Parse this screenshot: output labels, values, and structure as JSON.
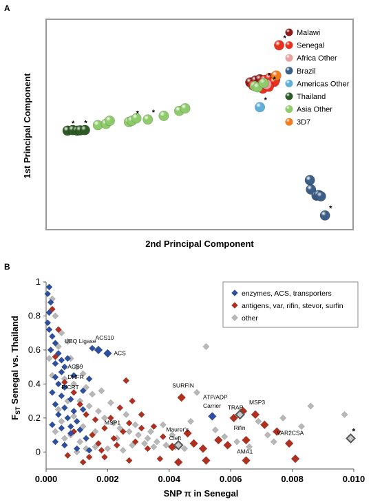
{
  "panels": {
    "a_label": "A",
    "b_label": "B"
  },
  "chart_data": [
    {
      "type": "scatter",
      "panel": "A",
      "xlabel": "2nd Principal Component",
      "ylabel": "1st Principal Component",
      "legend_position": "top-right",
      "series": [
        {
          "name": "Malawi",
          "color": "#8b1a1a",
          "points": [
            [
              50.2,
              7.8
            ],
            [
              51.6,
              8.1
            ],
            [
              52.8,
              8.3
            ]
          ]
        },
        {
          "name": "Senegal",
          "color": "#e8311f",
          "points": [
            [
              58,
              13.8
            ],
            [
              51,
              7.3
            ],
            [
              53.4,
              7.6
            ],
            [
              54.1,
              8.2
            ],
            [
              55.4,
              8.5
            ],
            [
              56.9,
              8.2
            ],
            [
              56.7,
              7.9
            ],
            [
              53.6,
              6.8
            ],
            [
              55.2,
              7.1
            ]
          ]
        },
        {
          "name": "Africa Other",
          "color": "#e8a0a0",
          "points": [
            [
              54.6,
              7.5
            ]
          ]
        },
        {
          "name": "Brazil",
          "color": "#3b5e86",
          "points": [
            [
              66.3,
              -8.0
            ],
            [
              66.6,
              -9.5
            ],
            [
              68.1,
              -10.5
            ],
            [
              68.7,
              -10.4
            ],
            [
              69.3,
              -10.6
            ],
            [
              70.4,
              -13.7
            ]
          ]
        },
        {
          "name": "Americas Other",
          "color": "#5fb0d8",
          "points": [
            [
              52.8,
              3.8
            ]
          ]
        },
        {
          "name": "Thailand",
          "color": "#2e5b25",
          "points": [
            [
              0.8,
              0
            ],
            [
              2.2,
              0.1
            ],
            [
              3.4,
              0
            ],
            [
              4.2,
              0.05
            ],
            [
              5.5,
              0.1
            ]
          ]
        },
        {
          "name": "Asia Other",
          "color": "#8ecb6b",
          "points": [
            [
              9,
              0.9
            ],
            [
              11.2,
              1.1
            ],
            [
              12.2,
              1.6
            ],
            [
              17.4,
              1.4
            ],
            [
              18.2,
              1.6
            ],
            [
              19.4,
              2.0
            ],
            [
              22.5,
              1.8
            ],
            [
              26.8,
              2.4
            ],
            [
              31,
              3.2
            ],
            [
              32.6,
              3.6
            ],
            [
              51.4,
              7.2
            ],
            [
              52.2,
              7.0
            ],
            [
              53.8,
              7.7
            ]
          ]
        },
        {
          "name": "3D7",
          "color": "#f07c1f",
          "points": [
            [
              57.2,
              8.9
            ]
          ]
        }
      ],
      "asterisk_points": [
        [
          0.8,
          0
        ],
        [
          4.2,
          0.05
        ],
        [
          18.2,
          1.6
        ],
        [
          22.5,
          1.8
        ],
        [
          58,
          13.8
        ],
        [
          53.8,
          7.7
        ],
        [
          55.2,
          7.1
        ],
        [
          52.8,
          3.8
        ],
        [
          70.4,
          -13.7
        ]
      ],
      "xlim": [
        -5,
        78
      ],
      "ylim": [
        -16,
        18
      ]
    },
    {
      "type": "scatter",
      "panel": "B",
      "xlabel": "SNP π in Senegal",
      "ylabel": "FST Senegal vs. Thailand",
      "ylabel_main": "F",
      "ylabel_sub": "ST",
      "ylabel_rest": " Senegal vs. Thailand",
      "xlim": [
        0,
        0.01
      ],
      "ylim": [
        -0.1,
        1.0
      ],
      "xticks": [
        "0.000",
        "0.002",
        "0.004",
        "0.006",
        "0.008",
        "0.010"
      ],
      "xtick_values": [
        0,
        0.002,
        0.004,
        0.006,
        0.008,
        0.01
      ],
      "yticks": [
        "0",
        "0.2",
        "0.4",
        "0.6",
        "0.8",
        "1"
      ],
      "ytick_values": [
        0,
        0.2,
        0.4,
        0.6,
        0.8,
        1.0
      ],
      "legend_position": "top-right",
      "series": [
        {
          "name": "enzymes, ACS, transporters",
          "color": "#2d4fa0",
          "points": [
            [
              5e-05,
              0.93
            ],
            [
              0.0001,
              0.97
            ],
            [
              0.00015,
              0.88
            ],
            [
              0.0001,
              0.82
            ],
            [
              5e-05,
              0.76
            ],
            [
              0.0001,
              0.72
            ],
            [
              0.0002,
              0.68
            ],
            [
              0.0003,
              0.64
            ],
            [
              0.00015,
              0.6
            ],
            [
              0.0004,
              0.58
            ],
            [
              0.0005,
              0.54
            ],
            [
              0.0003,
              0.52
            ],
            [
              0.0006,
              0.5
            ],
            [
              0.0005,
              0.47
            ],
            [
              0.0003,
              0.44
            ],
            [
              0.0004,
              0.4
            ],
            [
              0.0006,
              0.38
            ],
            [
              0.0002,
              0.35
            ],
            [
              0.0005,
              0.33
            ],
            [
              0.0008,
              0.31
            ],
            [
              0.0003,
              0.28
            ],
            [
              0.0006,
              0.26
            ],
            [
              0.0009,
              0.24
            ],
            [
              0.0004,
              0.22
            ],
            [
              0.0007,
              0.2
            ],
            [
              0.001,
              0.18
            ],
            [
              0.0002,
              0.16
            ],
            [
              0.0005,
              0.14
            ],
            [
              0.0011,
              0.13
            ],
            [
              0.0008,
              0.11
            ],
            [
              0.0013,
              0.08
            ],
            [
              0.0003,
              0.06
            ],
            [
              0.0006,
              0.04
            ],
            [
              0.001,
              0.02
            ],
            [
              0.0014,
              0.01
            ],
            [
              0.0012,
              0.36
            ],
            [
              0.0014,
              0.43
            ],
            [
              0.0009,
              0.45
            ],
            [
              0.0015,
              0.61
            ],
            [
              0.0017,
              0.6
            ],
            [
              0.002,
              0.58
            ],
            [
              0.0007,
              0.55
            ],
            [
              0.0012,
              0.25
            ],
            [
              0.0008,
              0.15
            ],
            [
              0.0054,
              0.21
            ]
          ]
        },
        {
          "name": "antigens, var, rifin, stevor, surfin",
          "color": "#b03020",
          "points": [
            [
              0.0002,
              0.84
            ],
            [
              0.0003,
              0.56
            ],
            [
              0.0004,
              0.72
            ],
            [
              0.0006,
              0.41
            ],
            [
              0.0009,
              0.35
            ],
            [
              0.0011,
              0.28
            ],
            [
              0.0013,
              0.22
            ],
            [
              0.0016,
              0.19
            ],
            [
              0.0019,
              0.14
            ],
            [
              0.0021,
              0.2
            ],
            [
              0.0024,
              0.26
            ],
            [
              0.0026,
              0.42
            ],
            [
              0.0028,
              0.3
            ],
            [
              0.0031,
              0.22
            ],
            [
              0.0017,
              0.05
            ],
            [
              0.0019,
              -0.03
            ],
            [
              0.0022,
              0.08
            ],
            [
              0.0025,
              0.12
            ],
            [
              0.0029,
              0.06
            ],
            [
              0.0033,
              0.02
            ],
            [
              0.0035,
              0.15
            ],
            [
              0.0038,
              0.09
            ],
            [
              0.0041,
              0.03
            ],
            [
              0.0044,
              0.32
            ],
            [
              0.0046,
              0.11
            ],
            [
              0.0048,
              0.05
            ],
            [
              0.0051,
              0.02
            ],
            [
              0.0056,
              0.07
            ],
            [
              0.0059,
              0.04
            ],
            [
              0.0061,
              0.2
            ],
            [
              0.0064,
              0.24
            ],
            [
              0.0065,
              0.07
            ],
            [
              0.0068,
              0.22
            ],
            [
              0.0071,
              0.16
            ],
            [
              0.0075,
              0.12
            ],
            [
              0.0079,
              0.05
            ],
            [
              0.0081,
              -0.04
            ],
            [
              0.0065,
              -0.05
            ],
            [
              0.0012,
              -0.06
            ],
            [
              0.0015,
              0.1
            ],
            [
              0.0009,
              0.12
            ],
            [
              0.0007,
              -0.02
            ],
            [
              0.0027,
              -0.05
            ],
            [
              0.0037,
              -0.04
            ],
            [
              0.0043,
              -0.06
            ],
            [
              0.0052,
              -0.05
            ],
            [
              0.0023,
              0.04
            ],
            [
              0.0014,
              -0.03
            ],
            [
              0.0031,
              0.14
            ],
            [
              0.0027,
              0.17
            ],
            [
              0.0018,
              0.01
            ]
          ]
        },
        {
          "name": "other",
          "color": "#b8b8b8",
          "points": [
            [
              0.0002,
              0.9
            ],
            [
              0.0003,
              0.8
            ],
            [
              0.0005,
              0.7
            ],
            [
              0.0007,
              0.65
            ],
            [
              0.0004,
              0.62
            ],
            [
              0.0008,
              0.55
            ],
            [
              0.001,
              0.5
            ],
            [
              0.0012,
              0.46
            ],
            [
              0.0006,
              0.43
            ],
            [
              0.0009,
              0.4
            ],
            [
              0.0013,
              0.38
            ],
            [
              0.0015,
              0.34
            ],
            [
              0.0011,
              0.3
            ],
            [
              0.0014,
              0.27
            ],
            [
              0.0017,
              0.24
            ],
            [
              0.0019,
              0.2
            ],
            [
              0.0022,
              0.17
            ],
            [
              0.0024,
              0.14
            ],
            [
              0.0027,
              0.12
            ],
            [
              0.003,
              0.1
            ],
            [
              0.0033,
              0.08
            ],
            [
              0.0036,
              0.06
            ],
            [
              0.0039,
              0.04
            ],
            [
              0.0042,
              0.03
            ],
            [
              0.0045,
              0.02
            ],
            [
              0.0047,
              0.18
            ],
            [
              0.0049,
              0.35
            ],
            [
              0.0052,
              0.62
            ],
            [
              0.0055,
              0.13
            ],
            [
              0.0058,
              0.09
            ],
            [
              0.0062,
              0.06
            ],
            [
              0.0066,
              0.03
            ],
            [
              0.0069,
              0.18
            ],
            [
              0.0072,
              0.1
            ],
            [
              0.0074,
              0.06
            ],
            [
              0.0077,
              0.2
            ],
            [
              0.0083,
              0.15
            ],
            [
              0.0086,
              0.27
            ],
            [
              0.0097,
              0.22
            ],
            [
              0.0099,
              0.08
            ],
            [
              0.0043,
              0.04
            ],
            [
              0.0063,
              0.22
            ],
            [
              0.0008,
              0.1
            ],
            [
              0.0011,
              0.06
            ],
            [
              0.0016,
              0.03
            ],
            [
              0.002,
              0.02
            ],
            [
              0.0025,
              0.01
            ],
            [
              0.0028,
              0.04
            ],
            [
              0.0032,
              0.05
            ],
            [
              0.0035,
              0.03
            ],
            [
              0.0004,
              0.25
            ],
            [
              0.0007,
              0.3
            ],
            [
              0.0002,
              0.45
            ],
            [
              0.0001,
              0.55
            ],
            [
              0.0018,
              0.36
            ],
            [
              0.0021,
              0.29
            ],
            [
              0.0026,
              0.22
            ],
            [
              0.0029,
              0.16
            ],
            [
              0.0034,
              0.12
            ],
            [
              0.0038,
              0.16
            ],
            [
              0.0041,
              0.1
            ],
            [
              0.0012,
              0.15
            ],
            [
              0.0016,
              0.12
            ],
            [
              0.0023,
              0.08
            ],
            [
              0.0005,
              0.18
            ],
            [
              0.0009,
              0.21
            ],
            [
              0.0003,
              0.12
            ],
            [
              0.0006,
              0.08
            ],
            [
              0.001,
              0.0
            ],
            [
              0.0013,
              0.02
            ]
          ]
        }
      ],
      "highlighted_points": [
        [
          0.0043,
          0.04
        ],
        [
          0.0063,
          0.22
        ],
        [
          0.0099,
          0.08
        ]
      ],
      "asterisk_point": [
        0.0099,
        0.08
      ],
      "annotations": [
        {
          "text": "UBQ Ligase",
          "x": 0.0006,
          "y": 0.64
        },
        {
          "text": "ACS10",
          "x": 0.0016,
          "y": 0.66
        },
        {
          "text": "ACS",
          "x": 0.0022,
          "y": 0.57
        },
        {
          "text": "ACS9",
          "x": 0.0007,
          "y": 0.49
        },
        {
          "text": "DHFR",
          "x": 0.0007,
          "y": 0.43
        },
        {
          "text": "PfCRT",
          "x": 0.0005,
          "y": 0.37
        },
        {
          "text": "SURFIN",
          "x": 0.0041,
          "y": 0.38
        },
        {
          "text": "ATP/ADP",
          "x": 0.0051,
          "y": 0.31
        },
        {
          "text": "Carrier",
          "x": 0.0051,
          "y": 0.26
        },
        {
          "text": "TRAP",
          "x": 0.0059,
          "y": 0.25
        },
        {
          "text": "MSP3",
          "x": 0.0066,
          "y": 0.28
        },
        {
          "text": "MSP1",
          "x": 0.0019,
          "y": 0.16
        },
        {
          "text": "Rifin",
          "x": 0.0061,
          "y": 0.13
        },
        {
          "text": "Maurer's",
          "x": 0.0039,
          "y": 0.12
        },
        {
          "text": "Cleft",
          "x": 0.004,
          "y": 0.07
        },
        {
          "text": "VAR2CSA",
          "x": 0.0075,
          "y": 0.1
        },
        {
          "text": "AMA1",
          "x": 0.0062,
          "y": -0.01
        }
      ]
    }
  ]
}
